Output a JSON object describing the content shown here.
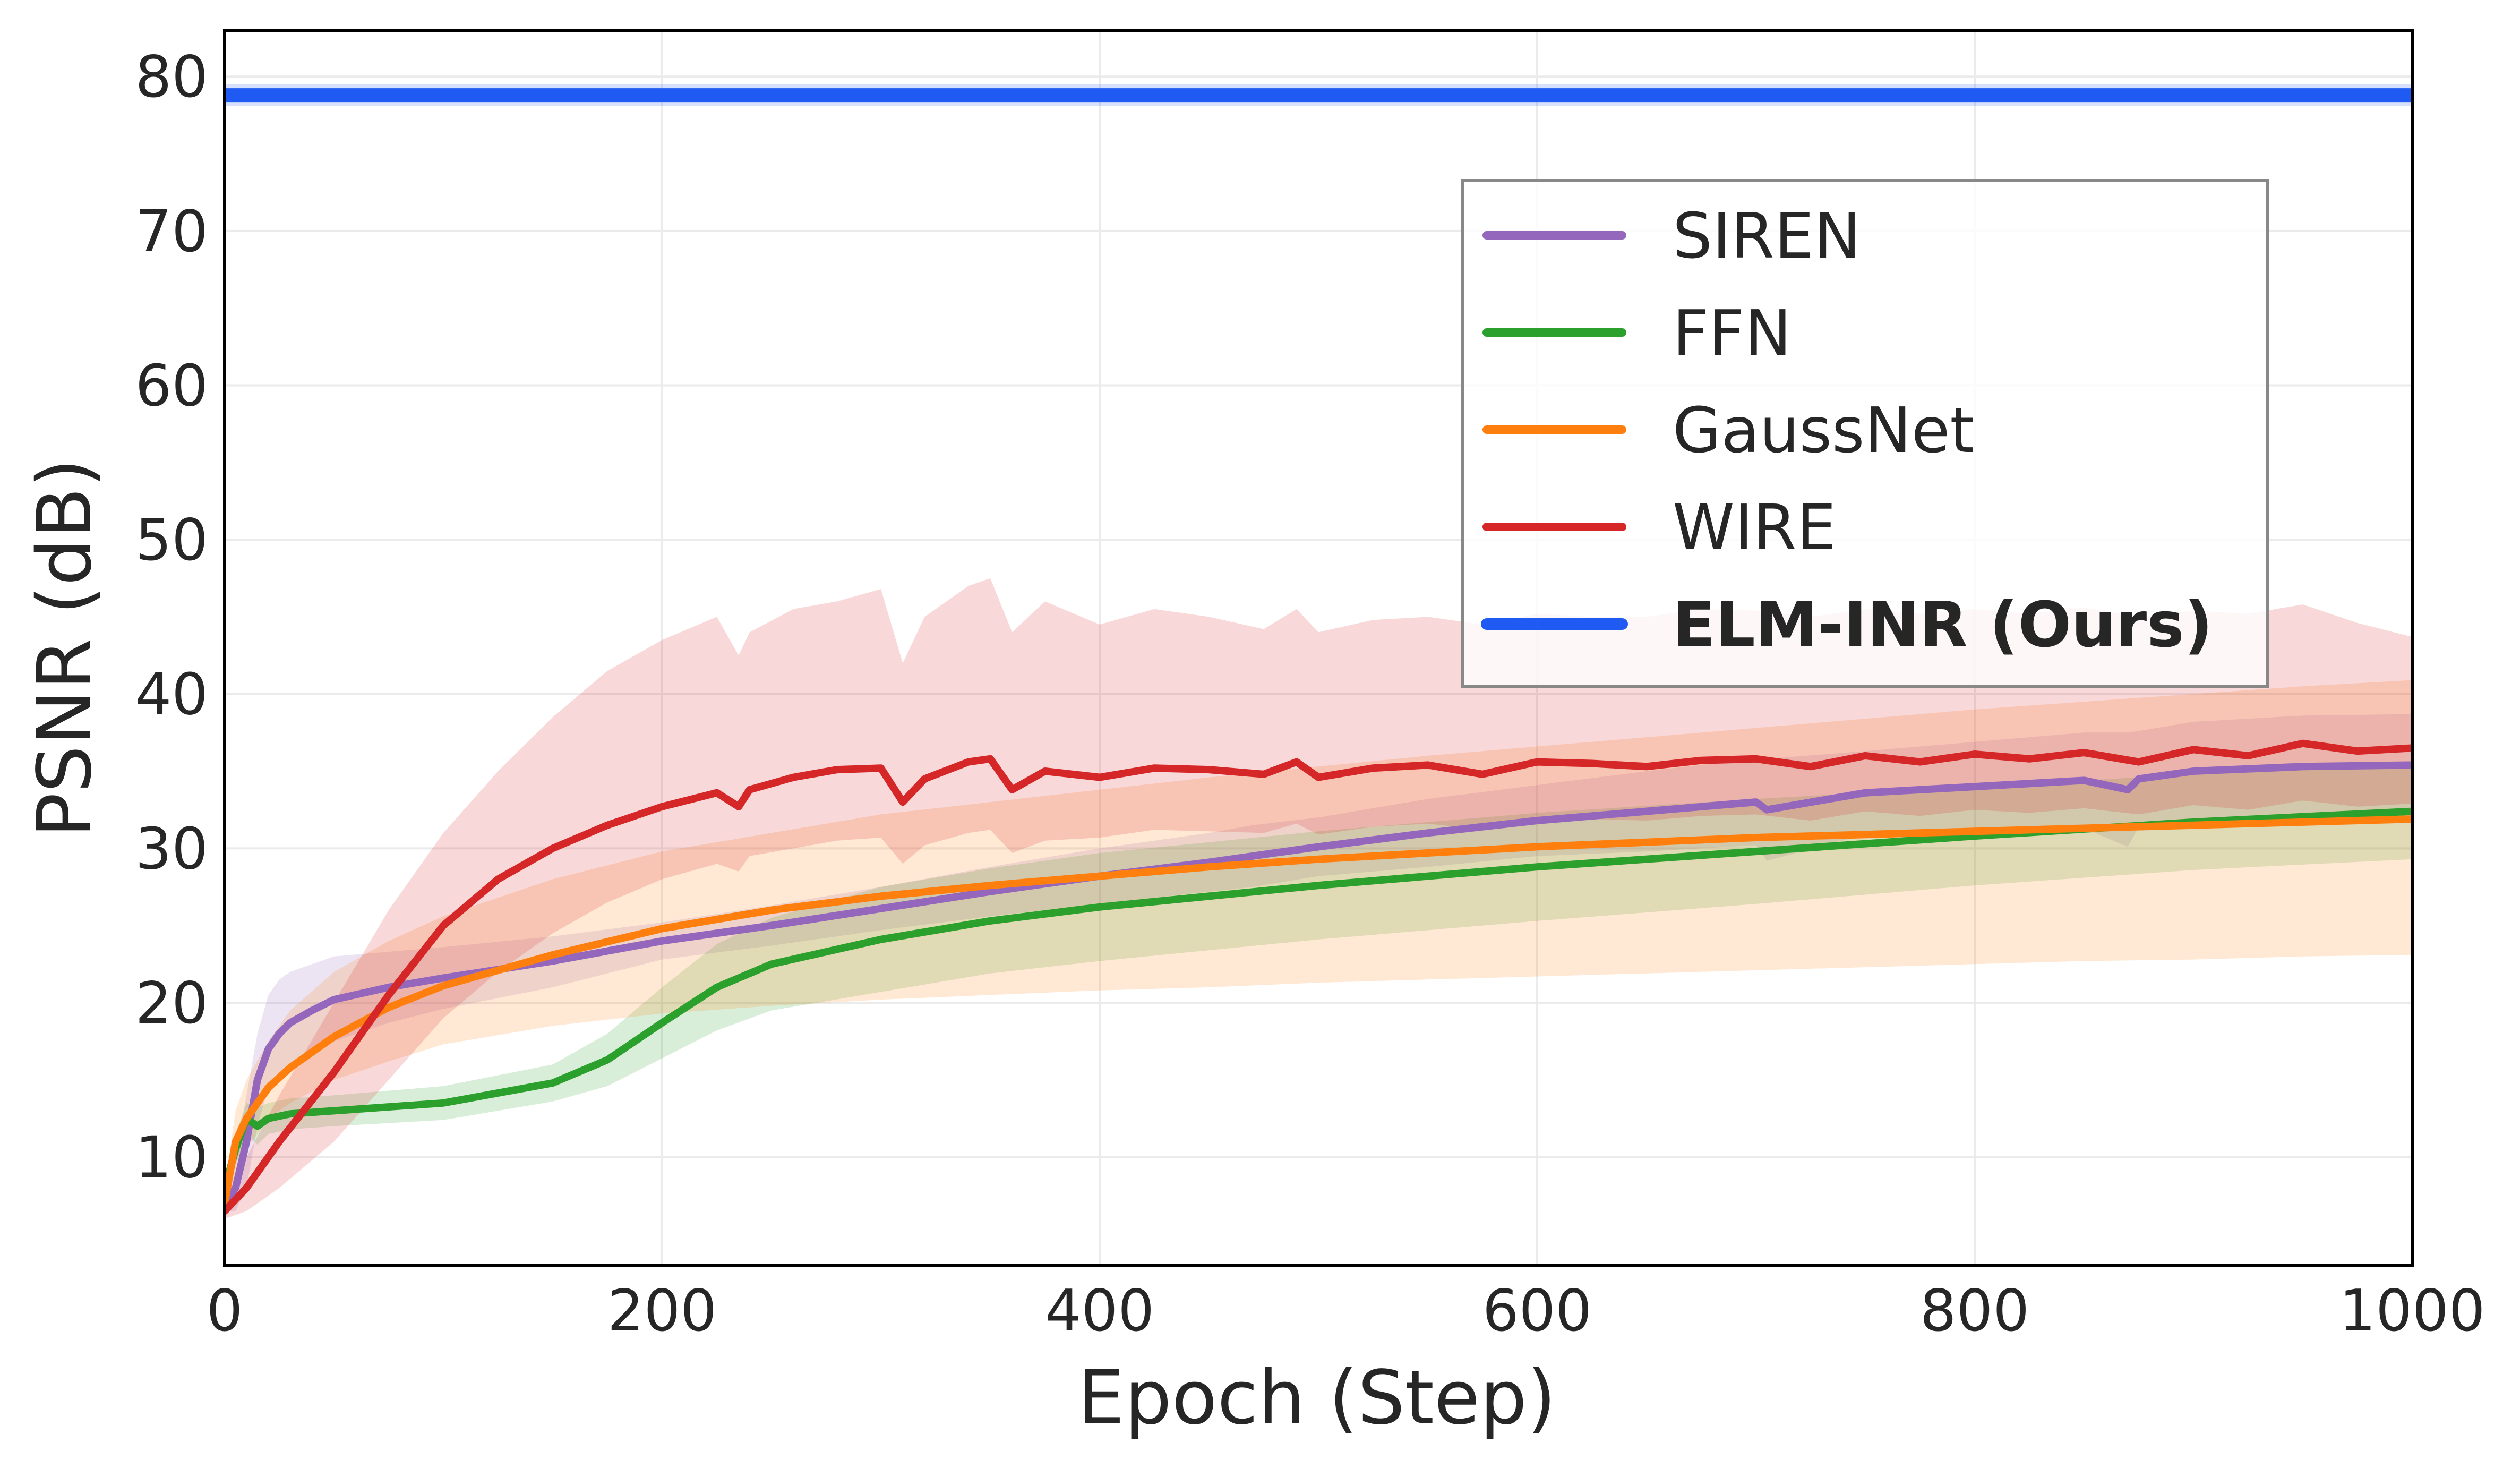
{
  "chart_data": {
    "type": "line",
    "title": "",
    "xlabel": "Epoch (Step)",
    "ylabel": "PSNR (dB)",
    "xlim": [
      0,
      1000
    ],
    "ylim": [
      3,
      83
    ],
    "xticks": [
      0,
      200,
      400,
      600,
      800,
      1000
    ],
    "xtick_labels": [
      "0",
      "200",
      "400",
      "600",
      "800",
      "1000"
    ],
    "yticks": [
      10,
      20,
      30,
      40,
      50,
      60,
      70,
      80
    ],
    "ytick_labels": [
      "10",
      "20",
      "30",
      "40",
      "50",
      "60",
      "70",
      "80"
    ],
    "grid": true,
    "legend_position": "upper-right",
    "series": [
      {
        "name": "SIREN",
        "color": "#9467bd",
        "bold": false,
        "x": [
          0,
          5,
          10,
          15,
          20,
          25,
          30,
          40,
          50,
          75,
          100,
          150,
          200,
          250,
          300,
          350,
          400,
          450,
          470,
          500,
          550,
          600,
          650,
          700,
          705,
          750,
          800,
          850,
          870,
          875,
          900,
          950,
          1000
        ],
        "y": [
          7,
          8,
          11,
          15,
          17,
          18,
          18.7,
          19.5,
          20.2,
          21,
          21.6,
          22.7,
          24,
          25,
          26.1,
          27.2,
          28.2,
          29.1,
          29.5,
          30.1,
          31,
          31.8,
          32.4,
          33,
          32.5,
          33.6,
          34,
          34.4,
          33.8,
          34.5,
          35,
          35.3,
          35.4
        ],
        "band_upper": [
          7.5,
          10,
          14,
          18,
          20.5,
          21.5,
          22,
          22.5,
          23,
          23.3,
          23.6,
          24.3,
          25.2,
          26.3,
          27.5,
          28.8,
          30,
          31,
          31.5,
          32,
          33.2,
          34.1,
          35,
          35.8,
          35.8,
          36.3,
          36.9,
          37.5,
          37.5,
          37.6,
          38.2,
          38.6,
          38.7
        ],
        "band_lower": [
          6.5,
          6.5,
          8,
          12,
          14.5,
          15.5,
          16,
          16.8,
          17.5,
          18.7,
          19.6,
          21,
          22.8,
          23.7,
          24.7,
          25.6,
          26.4,
          27.2,
          27.5,
          28.2,
          28.8,
          29.5,
          29.8,
          30.2,
          29.2,
          30.9,
          31.1,
          31.3,
          30.1,
          31.4,
          31.8,
          32,
          32.1
        ]
      },
      {
        "name": "FFN",
        "color": "#2ca02c",
        "bold": false,
        "x": [
          0,
          5,
          10,
          15,
          20,
          30,
          50,
          100,
          150,
          175,
          200,
          225,
          250,
          300,
          350,
          400,
          450,
          500,
          600,
          700,
          800,
          900,
          1000
        ],
        "y": [
          8,
          10.5,
          12.5,
          12,
          12.5,
          12.8,
          13,
          13.5,
          14.8,
          16.3,
          18.7,
          21,
          22.5,
          24.1,
          25.3,
          26.2,
          26.9,
          27.6,
          28.8,
          29.8,
          30.8,
          31.7,
          32.4
        ],
        "band_upper": [
          8.8,
          11.5,
          13.5,
          13.2,
          13.5,
          13.8,
          14,
          14.6,
          16,
          18,
          21,
          23.8,
          25.5,
          27.5,
          28.7,
          29.7,
          30.4,
          31.1,
          32.3,
          33.2,
          34,
          34.8,
          35.5
        ],
        "band_lower": [
          7.2,
          9.5,
          11.5,
          10.8,
          11.5,
          11.8,
          12,
          12.4,
          13.6,
          14.6,
          16.4,
          18.2,
          19.5,
          20.7,
          21.9,
          22.7,
          23.4,
          24.1,
          25.3,
          26.4,
          27.6,
          28.6,
          29.3
        ]
      },
      {
        "name": "GaussNet",
        "color": "#ff7f0e",
        "bold": false,
        "x": [
          0,
          5,
          10,
          20,
          30,
          50,
          75,
          100,
          150,
          200,
          250,
          300,
          350,
          400,
          450,
          500,
          550,
          600,
          650,
          700,
          750,
          800,
          850,
          900,
          950,
          1000
        ],
        "y": [
          7,
          11,
          12.5,
          14.5,
          15.8,
          17.8,
          19.7,
          21.1,
          23.1,
          24.8,
          26,
          26.9,
          27.6,
          28.2,
          28.8,
          29.3,
          29.7,
          30.1,
          30.4,
          30.7,
          30.9,
          31.1,
          31.3,
          31.5,
          31.7,
          31.9
        ],
        "band_upper": [
          8,
          13,
          15,
          17.5,
          19.5,
          22,
          24,
          25.6,
          28,
          29.8,
          31,
          32.2,
          33,
          33.8,
          34.6,
          35.3,
          36,
          36.6,
          37.2,
          37.8,
          38.4,
          39,
          39.5,
          40,
          40.5,
          40.9
        ],
        "band_lower": [
          6,
          9,
          10.5,
          12.5,
          13.5,
          15,
          16.2,
          17.3,
          18.5,
          19.3,
          19.8,
          20.2,
          20.5,
          20.8,
          21,
          21.3,
          21.5,
          21.7,
          21.9,
          22.1,
          22.3,
          22.5,
          22.7,
          22.8,
          23,
          23.1
        ]
      },
      {
        "name": "WIRE",
        "color": "#d62728",
        "bold": false,
        "x": [
          0,
          10,
          25,
          50,
          75,
          100,
          125,
          150,
          175,
          200,
          225,
          235,
          240,
          260,
          280,
          300,
          310,
          320,
          340,
          350,
          360,
          375,
          400,
          425,
          450,
          475,
          490,
          500,
          525,
          550,
          575,
          600,
          625,
          650,
          675,
          700,
          725,
          750,
          775,
          800,
          825,
          850,
          875,
          900,
          925,
          950,
          975,
          1000
        ],
        "y": [
          6.5,
          8,
          11,
          15.5,
          20.5,
          25,
          28,
          30,
          31.5,
          32.7,
          33.6,
          32.7,
          33.8,
          34.6,
          35.1,
          35.2,
          33,
          34.5,
          35.6,
          35.8,
          33.8,
          35,
          34.6,
          35.2,
          35.1,
          34.8,
          35.6,
          34.6,
          35.2,
          35.4,
          34.8,
          35.6,
          35.5,
          35.3,
          35.7,
          35.8,
          35.3,
          36,
          35.6,
          36.1,
          35.8,
          36.2,
          35.6,
          36.4,
          36,
          36.8,
          36.3,
          36.5
        ],
        "band_upper": [
          7,
          10,
          14,
          20,
          26,
          31,
          35,
          38.5,
          41.5,
          43.5,
          45,
          42.5,
          44,
          45.5,
          46,
          46.8,
          42,
          45,
          47,
          47.5,
          44,
          46,
          44.5,
          45.5,
          45,
          44.2,
          45.5,
          44,
          44.8,
          45,
          44.5,
          45.2,
          45,
          45,
          45.5,
          45.4,
          45,
          45.5,
          45.2,
          45.5,
          45.2,
          45.6,
          45,
          45.4,
          45.2,
          45.8,
          44.6,
          43.7
        ],
        "band_lower": [
          6,
          6.5,
          8,
          11,
          15,
          19,
          22,
          24.5,
          26.5,
          28,
          29,
          28.5,
          29.5,
          30,
          30.5,
          30.7,
          29,
          30.2,
          31,
          31.2,
          29.7,
          30.5,
          30.7,
          31.2,
          31.1,
          31,
          31.6,
          30.9,
          31.4,
          31.6,
          31.2,
          31.9,
          31.9,
          31.8,
          32.1,
          32.2,
          31.8,
          32.4,
          32.1,
          32.5,
          32.3,
          32.6,
          32.2,
          32.8,
          32.5,
          33.1,
          32.7,
          32.9
        ]
      },
      {
        "name": "ELM-INR (Ours)",
        "color": "#1f5af2",
        "bold": true,
        "x": [
          0,
          1000
        ],
        "y": [
          78.8,
          78.8
        ],
        "band_upper": [
          79.5,
          79.5
        ],
        "band_lower": [
          78.1,
          78.1
        ]
      }
    ]
  }
}
